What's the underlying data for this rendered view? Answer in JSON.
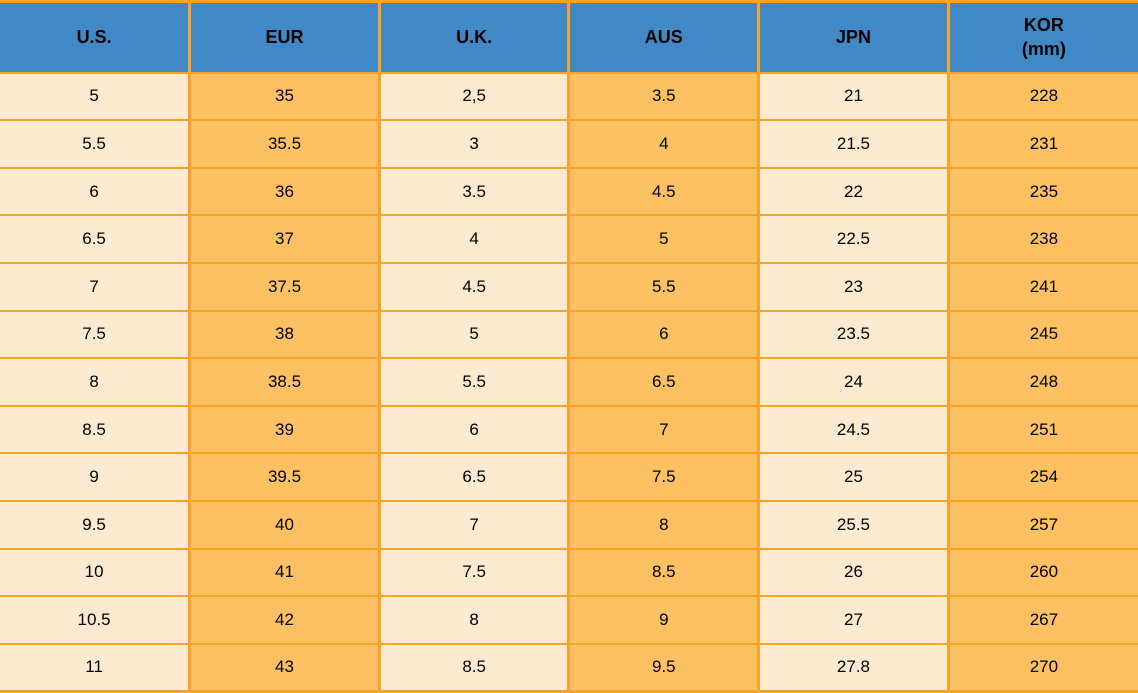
{
  "theme": {
    "header_bg": "#4189C6",
    "header_text": "#000000",
    "band_light": "#FDEAD0",
    "band_dark": "#FDC163",
    "grid_line": "#F9A328",
    "cell_text": "#000000",
    "page_bg": "#FFFFFF"
  },
  "chart_data": {
    "type": "table",
    "description": "Shoe size conversion table with banded columns (alternating cream and orange) and a blue header row",
    "columns": [
      {
        "label": "U.S.",
        "sublabel": ""
      },
      {
        "label": "EUR",
        "sublabel": ""
      },
      {
        "label": "U.K.",
        "sublabel": ""
      },
      {
        "label": "AUS",
        "sublabel": ""
      },
      {
        "label": "JPN",
        "sublabel": ""
      },
      {
        "label": "KOR",
        "sublabel": "(mm)"
      }
    ],
    "rows": [
      [
        "5",
        "35",
        "2,5",
        "3.5",
        "21",
        "228"
      ],
      [
        "5.5",
        "35.5",
        "3",
        "4",
        "21.5",
        "231"
      ],
      [
        "6",
        "36",
        "3.5",
        "4.5",
        "22",
        "235"
      ],
      [
        "6.5",
        "37",
        "4",
        "5",
        "22.5",
        "238"
      ],
      [
        "7",
        "37.5",
        "4.5",
        "5.5",
        "23",
        "241"
      ],
      [
        "7.5",
        "38",
        "5",
        "6",
        "23.5",
        "245"
      ],
      [
        "8",
        "38.5",
        "5.5",
        "6.5",
        "24",
        "248"
      ],
      [
        "8.5",
        "39",
        "6",
        "7",
        "24.5",
        "251"
      ],
      [
        "9",
        "39.5",
        "6.5",
        "7.5",
        "25",
        "254"
      ],
      [
        "9.5",
        "40",
        "7",
        "8",
        "25.5",
        "257"
      ],
      [
        "10",
        "41",
        "7.5",
        "8.5",
        "26",
        "260"
      ],
      [
        "10.5",
        "42",
        "8",
        "9",
        "27",
        "267"
      ],
      [
        "11",
        "43",
        "8.5",
        "9.5",
        "27.8",
        "270"
      ]
    ]
  }
}
